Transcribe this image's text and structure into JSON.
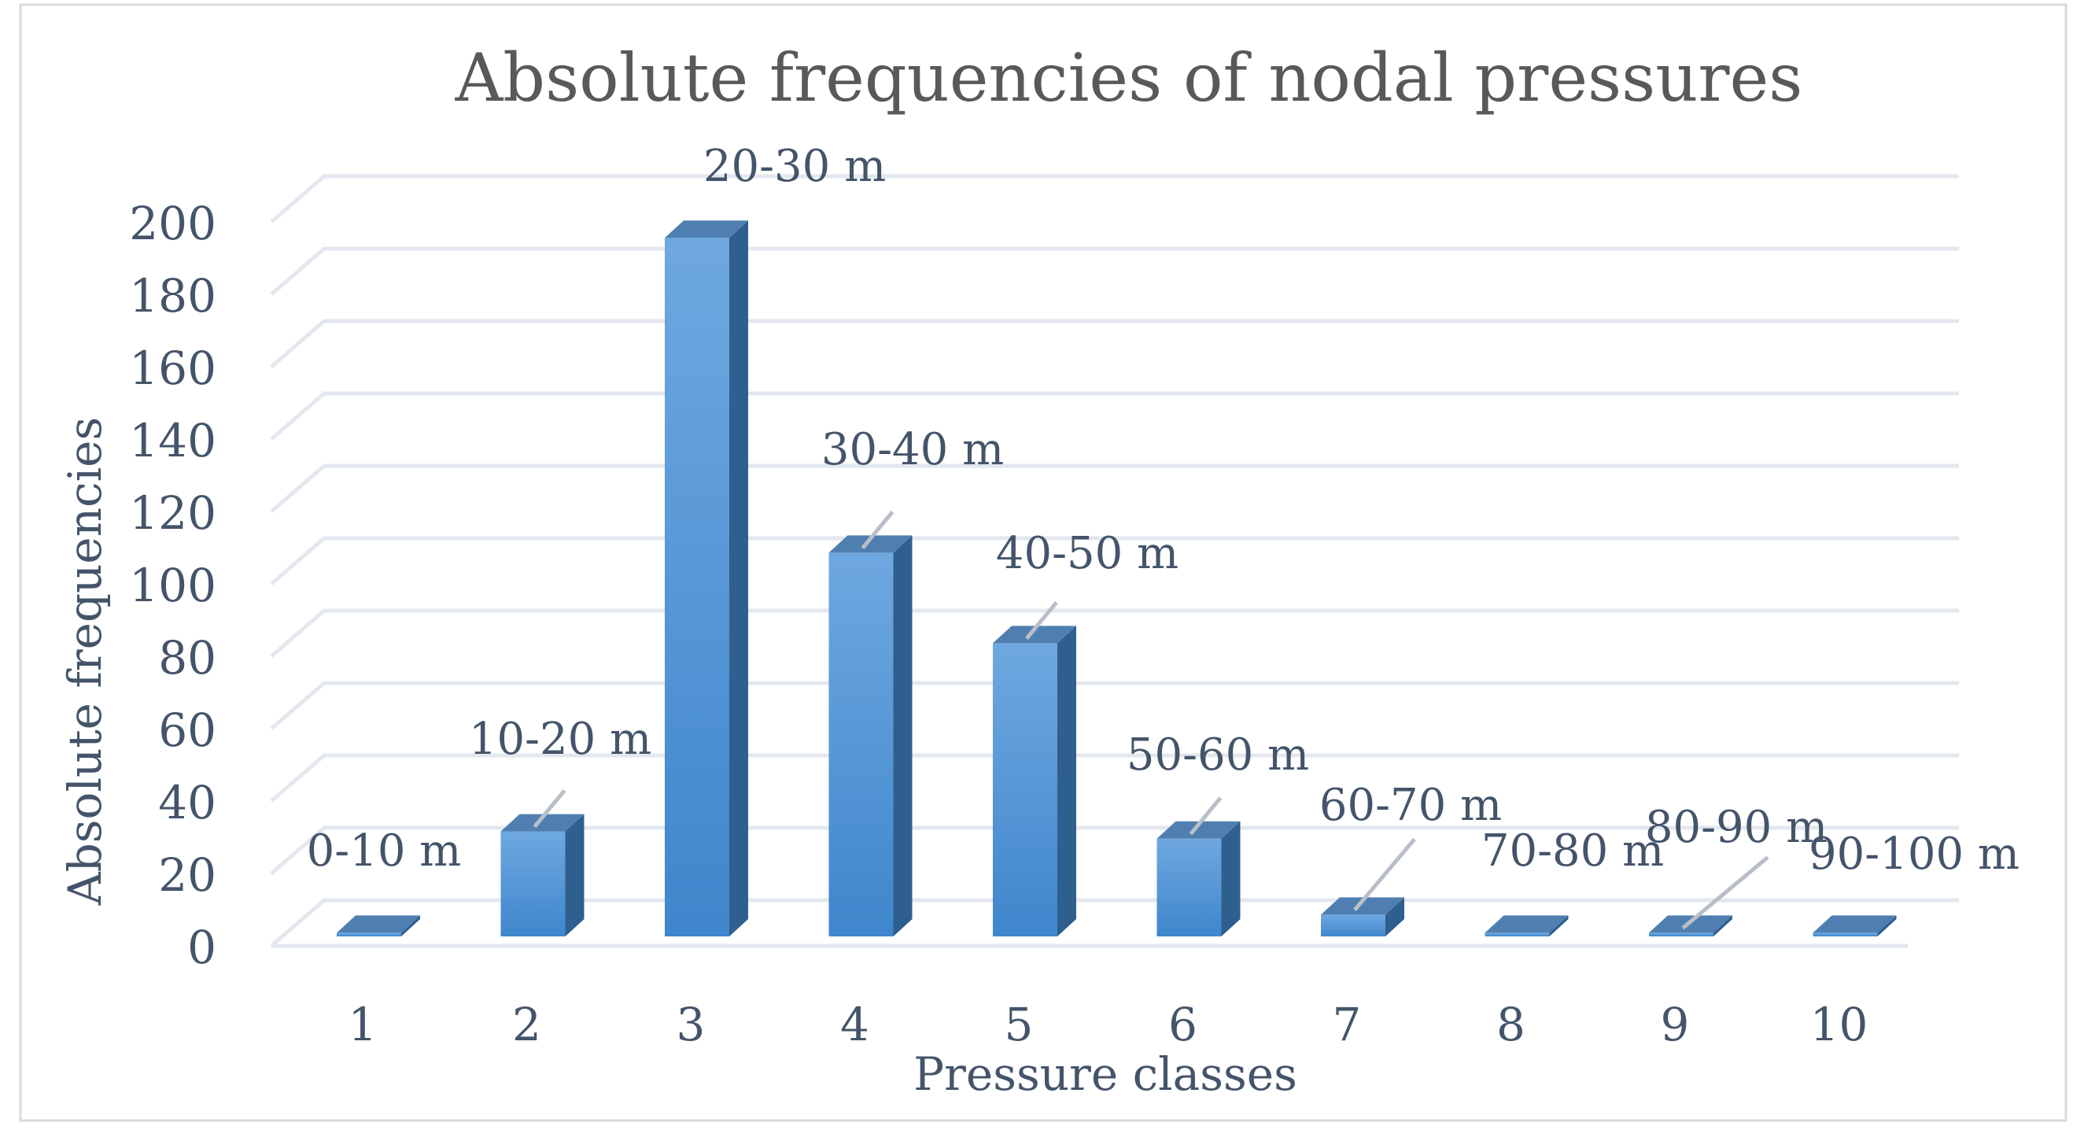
{
  "chart_data": {
    "type": "bar",
    "title": "Absolute frequencies of nodal pressures",
    "xlabel": "Pressure classes",
    "ylabel": "Absolute frequencies",
    "categories": [
      "1",
      "2",
      "3",
      "4",
      "5",
      "6",
      "7",
      "8",
      "9",
      "10"
    ],
    "values": [
      1,
      29,
      193,
      106,
      81,
      27,
      6,
      1,
      1,
      1
    ],
    "data_labels": [
      "0-10 m",
      "10-20 m",
      "20-30 m",
      "30-40 m",
      "40-50 m",
      "50-60 m",
      "60-70 m",
      "70-80 m",
      "80-90 m",
      "90-100 m"
    ],
    "yticks": [
      "0",
      "20",
      "40",
      "60",
      "80",
      "100",
      "120",
      "140",
      "160",
      "180",
      "200"
    ],
    "ylim": [
      0,
      200
    ],
    "grid": true,
    "legend": "none",
    "colors": {
      "bar_front_top": "#6fa8e0",
      "bar_front_bottom": "#3f86cc",
      "bar_side": "#2f5f8f",
      "bar_top": "#4f7fb0",
      "grid": "#e3e7ee",
      "text": "#44546a",
      "title": "#595959",
      "frame": "#d9d9d9",
      "leader": "#b9bfc8"
    }
  }
}
